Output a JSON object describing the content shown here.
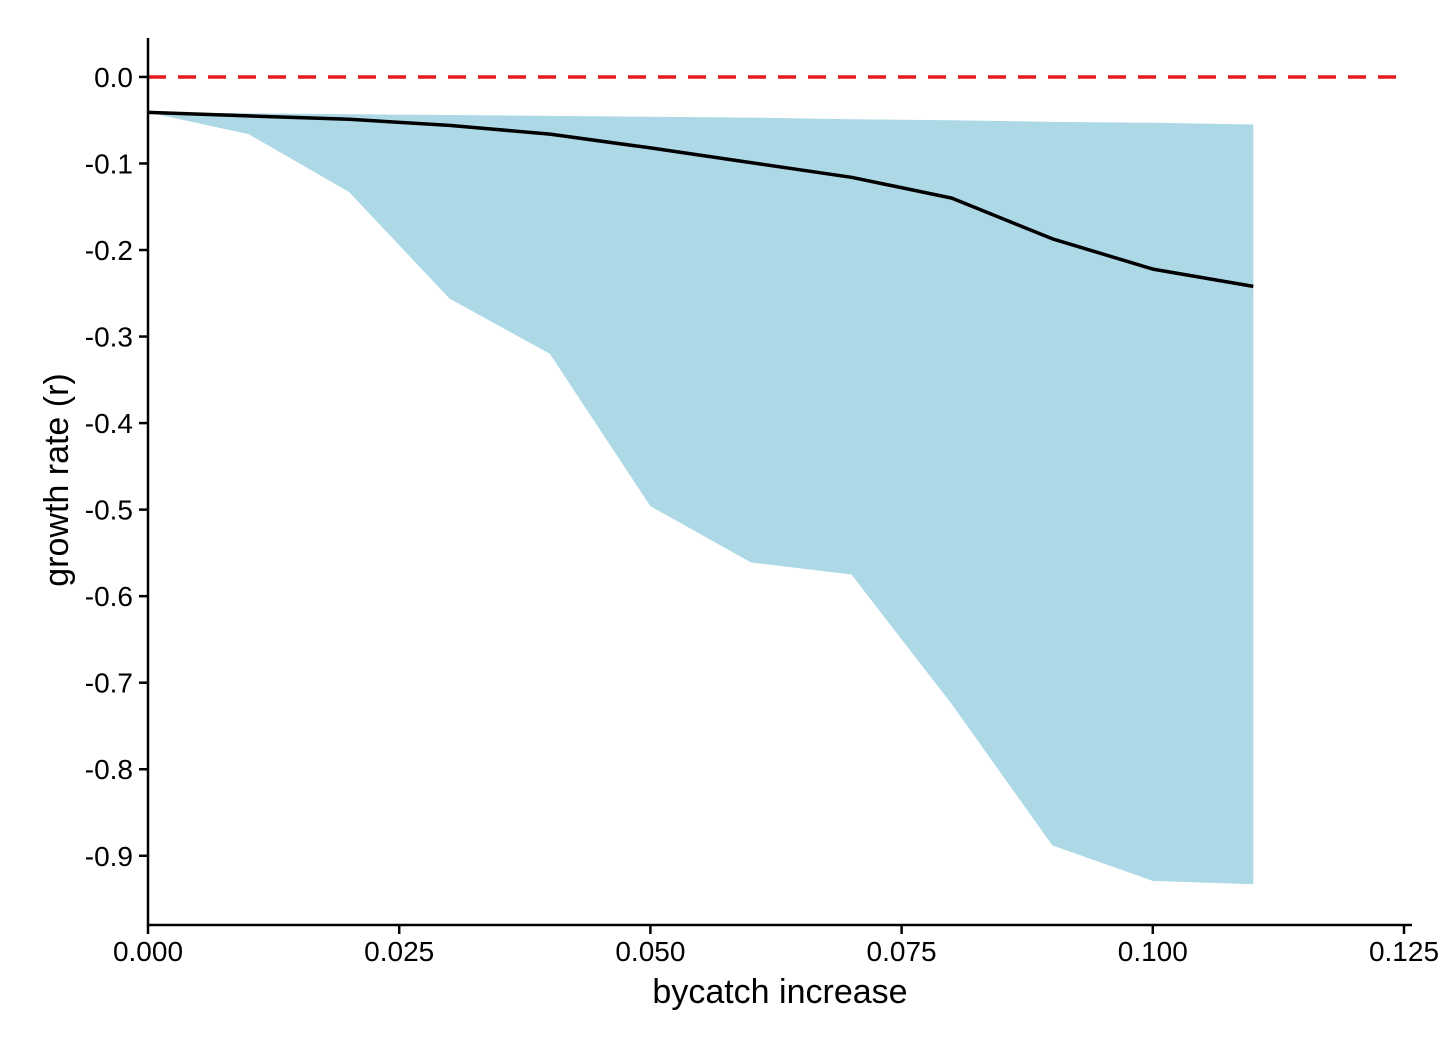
{
  "chart_data": {
    "type": "area",
    "xlabel": "bycatch increase",
    "ylabel": "growth rate (r)",
    "xlim": [
      0,
      0.125
    ],
    "ylim": [
      -0.98,
      0.045
    ],
    "x_ticks": [
      "0.000",
      "0.025",
      "0.050",
      "0.075",
      "0.100",
      "0.125"
    ],
    "x_tick_values": [
      0,
      0.025,
      0.05,
      0.075,
      0.1,
      0.125
    ],
    "y_ticks": [
      "0.0",
      "-0.1",
      "-0.2",
      "-0.3",
      "-0.4",
      "-0.5",
      "-0.6",
      "-0.7",
      "-0.8",
      "-0.9"
    ],
    "y_tick_values": [
      0,
      -0.1,
      -0.2,
      -0.3,
      -0.4,
      -0.5,
      -0.6,
      -0.7,
      -0.8,
      -0.9
    ],
    "grid": false,
    "reference_line": {
      "y": 0,
      "style": "dashed",
      "color": "#e41a1c"
    },
    "x": [
      0,
      0.01,
      0.02,
      0.03,
      0.04,
      0.05,
      0.06,
      0.07,
      0.08,
      0.09,
      0.1,
      0.11
    ],
    "series": [
      {
        "values": [
          -0.041,
          -0.045,
          -0.049,
          -0.056,
          -0.066,
          -0.082,
          -0.099,
          -0.116,
          -0.14,
          -0.187,
          -0.222,
          -0.242
        ],
        "color": "#000000"
      }
    ],
    "band": {
      "upper": [
        -0.041,
        -0.042,
        -0.043,
        -0.044,
        -0.045,
        -0.046,
        -0.047,
        -0.049,
        -0.05,
        -0.052,
        -0.053,
        -0.055
      ],
      "lower": [
        -0.041,
        -0.066,
        -0.133,
        -0.256,
        -0.32,
        -0.496,
        -0.561,
        -0.575,
        -0.725,
        -0.888,
        -0.929,
        -0.933
      ],
      "color": "#add8e6"
    }
  }
}
